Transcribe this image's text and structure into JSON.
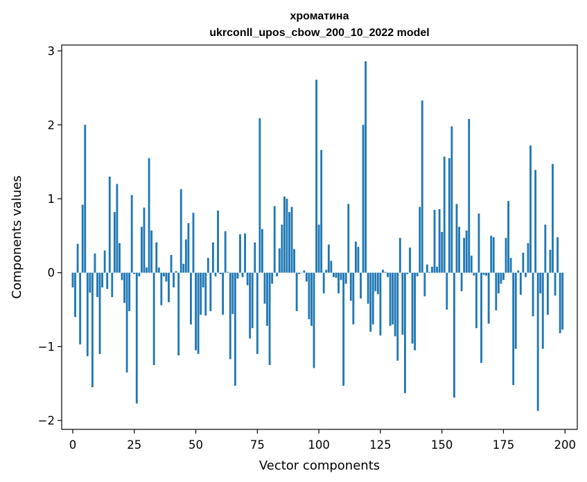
{
  "chart_data": {
    "type": "bar",
    "title": "хроматина",
    "subtitle": "ukrconll_upos_cbow_200_10_2022 model",
    "xlabel": "Vector components",
    "ylabel": "Components values",
    "xlim": [
      -4.5,
      205
    ],
    "ylim": [
      -2.12,
      3.08
    ],
    "xticks": [
      0,
      25,
      50,
      75,
      100,
      125,
      150,
      175,
      200
    ],
    "yticks": [
      -2,
      -1,
      0,
      1,
      2,
      3
    ],
    "bar_color": "#1f77b4",
    "x": [
      0,
      1,
      2,
      3,
      4,
      5,
      6,
      7,
      8,
      9,
      10,
      11,
      12,
      13,
      14,
      15,
      16,
      17,
      18,
      19,
      20,
      21,
      22,
      23,
      24,
      25,
      26,
      27,
      28,
      29,
      30,
      31,
      32,
      33,
      34,
      35,
      36,
      37,
      38,
      39,
      40,
      41,
      42,
      43,
      44,
      45,
      46,
      47,
      48,
      49,
      50,
      51,
      52,
      53,
      54,
      55,
      56,
      57,
      58,
      59,
      60,
      61,
      62,
      63,
      64,
      65,
      66,
      67,
      68,
      69,
      70,
      71,
      72,
      73,
      74,
      75,
      76,
      77,
      78,
      79,
      80,
      81,
      82,
      83,
      84,
      85,
      86,
      87,
      88,
      89,
      90,
      91,
      92,
      93,
      94,
      95,
      96,
      97,
      98,
      99,
      100,
      101,
      102,
      103,
      104,
      105,
      106,
      107,
      108,
      109,
      110,
      111,
      112,
      113,
      114,
      115,
      116,
      117,
      118,
      119,
      120,
      121,
      122,
      123,
      124,
      125,
      126,
      127,
      128,
      129,
      130,
      131,
      132,
      133,
      134,
      135,
      136,
      137,
      138,
      139,
      140,
      141,
      142,
      143,
      144,
      145,
      146,
      147,
      148,
      149,
      150,
      151,
      152,
      153,
      154,
      155,
      156,
      157,
      158,
      159,
      160,
      161,
      162,
      163,
      164,
      165,
      166,
      167,
      168,
      169,
      170,
      171,
      172,
      173,
      174,
      175,
      176,
      177,
      178,
      179,
      180,
      181,
      182,
      183,
      184,
      185,
      186,
      187,
      188,
      189,
      190,
      191,
      192,
      193,
      194,
      195,
      196,
      197,
      198,
      199
    ],
    "values": [
      -0.2,
      -0.6,
      0.39,
      -0.97,
      0.92,
      2.0,
      -1.13,
      -0.27,
      -1.55,
      0.26,
      -0.33,
      -1.1,
      -0.2,
      0.3,
      -0.22,
      1.3,
      -0.33,
      0.82,
      1.2,
      0.4,
      -0.1,
      -0.41,
      -1.35,
      -0.52,
      1.05,
      -0.02,
      -1.77,
      -0.05,
      0.62,
      0.88,
      0.07,
      1.55,
      0.57,
      -1.25,
      0.41,
      0.07,
      -0.44,
      -0.05,
      -0.12,
      -0.4,
      0.24,
      -0.2,
      0.02,
      -1.12,
      1.13,
      0.12,
      0.45,
      0.67,
      -0.7,
      0.81,
      -1.05,
      -1.1,
      -0.57,
      -0.2,
      -0.58,
      0.2,
      -0.52,
      0.41,
      -0.05,
      0.84,
      -0.02,
      -0.57,
      0.56,
      0.01,
      -1.17,
      -0.56,
      -1.53,
      -0.08,
      0.52,
      -0.06,
      0.53,
      -0.17,
      -0.89,
      -0.75,
      0.41,
      -1.1,
      2.09,
      0.59,
      -0.42,
      -0.72,
      -1.25,
      -0.15,
      0.9,
      -0.05,
      0.33,
      0.65,
      1.03,
      1.0,
      0.82,
      0.89,
      0.32,
      -0.52,
      -0.02,
      0.0,
      0.03,
      -0.12,
      -0.63,
      -0.72,
      -1.29,
      2.61,
      0.65,
      1.66,
      -0.28,
      0.04,
      0.38,
      0.16,
      -0.06,
      -0.07,
      -0.28,
      -0.1,
      -1.53,
      -0.15,
      0.93,
      -0.38,
      -0.7,
      0.42,
      0.35,
      -0.35,
      2.0,
      2.86,
      -0.42,
      -0.8,
      -0.7,
      -0.25,
      -0.29,
      -0.85,
      0.04,
      0.01,
      -0.06,
      -0.72,
      -0.7,
      -0.86,
      -1.19,
      0.47,
      -0.84,
      -1.63,
      -0.02,
      0.34,
      -0.96,
      -1.05,
      -0.05,
      0.89,
      2.33,
      -0.32,
      0.11,
      0.01,
      0.08,
      0.85,
      0.08,
      0.86,
      0.55,
      1.57,
      -0.5,
      1.55,
      1.98,
      -1.69,
      0.93,
      0.62,
      -0.25,
      0.47,
      0.57,
      2.08,
      0.23,
      -0.04,
      -0.75,
      0.8,
      -1.22,
      -0.03,
      -0.04,
      -0.69,
      0.5,
      0.48,
      -0.51,
      -0.28,
      -0.15,
      -0.1,
      0.47,
      0.97,
      0.2,
      -1.52,
      -1.03,
      0.03,
      -0.3,
      0.27,
      -0.06,
      0.4,
      1.72,
      -0.59,
      1.39,
      -1.87,
      -0.28,
      -1.03,
      0.65,
      -0.57,
      0.31,
      1.47,
      -0.31,
      0.48,
      -0.82,
      -0.77
    ]
  }
}
